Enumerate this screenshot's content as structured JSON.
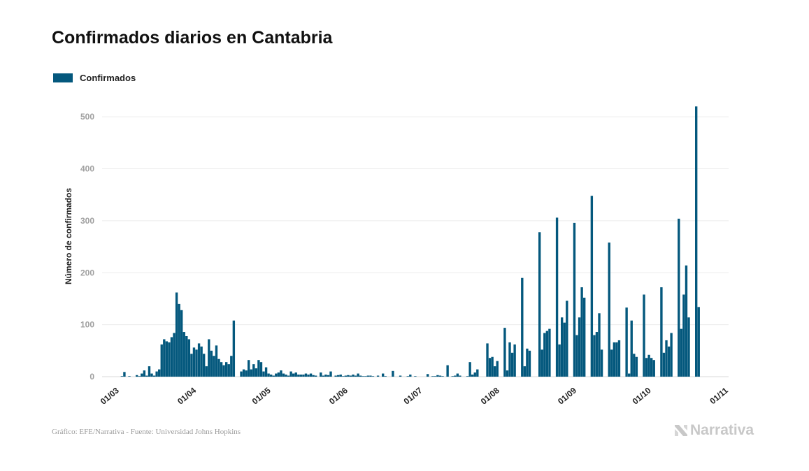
{
  "chart_data": {
    "type": "bar",
    "title": "Confirmados diarios en Cantabria",
    "ylabel": "Número de confirmados",
    "xlabel": "",
    "ylim": [
      0,
      550
    ],
    "yticks": [
      0,
      100,
      200,
      300,
      400,
      500
    ],
    "x_start": "2020-02-23",
    "x_end": "2020-11-01",
    "x_ticks": [
      {
        "date": "2020-03-01",
        "label": "01/03"
      },
      {
        "date": "2020-04-01",
        "label": "01/04"
      },
      {
        "date": "2020-05-01",
        "label": "01/05"
      },
      {
        "date": "2020-06-01",
        "label": "01/06"
      },
      {
        "date": "2020-07-01",
        "label": "01/07"
      },
      {
        "date": "2020-08-01",
        "label": "01/08"
      },
      {
        "date": "2020-09-01",
        "label": "01/09"
      },
      {
        "date": "2020-10-01",
        "label": "01/10"
      },
      {
        "date": "2020-11-01",
        "label": "01/11"
      }
    ],
    "grid": true,
    "legend_position": "top-left",
    "series": [
      {
        "name": "Confirmados",
        "color": "#04587d",
        "points": [
          [
            "2020-03-02",
            1
          ],
          [
            "2020-03-03",
            9
          ],
          [
            "2020-03-05",
            1
          ],
          [
            "2020-03-08",
            3
          ],
          [
            "2020-03-09",
            1
          ],
          [
            "2020-03-10",
            6
          ],
          [
            "2020-03-11",
            12
          ],
          [
            "2020-03-12",
            2
          ],
          [
            "2020-03-13",
            20
          ],
          [
            "2020-03-14",
            6
          ],
          [
            "2020-03-15",
            2
          ],
          [
            "2020-03-16",
            10
          ],
          [
            "2020-03-17",
            14
          ],
          [
            "2020-03-18",
            62
          ],
          [
            "2020-03-19",
            72
          ],
          [
            "2020-03-20",
            68
          ],
          [
            "2020-03-21",
            66
          ],
          [
            "2020-03-22",
            76
          ],
          [
            "2020-03-23",
            84
          ],
          [
            "2020-03-24",
            162
          ],
          [
            "2020-03-25",
            140
          ],
          [
            "2020-03-26",
            128
          ],
          [
            "2020-03-27",
            86
          ],
          [
            "2020-03-28",
            78
          ],
          [
            "2020-03-29",
            72
          ],
          [
            "2020-03-30",
            44
          ],
          [
            "2020-03-31",
            56
          ],
          [
            "2020-04-01",
            52
          ],
          [
            "2020-04-02",
            64
          ],
          [
            "2020-04-03",
            58
          ],
          [
            "2020-04-04",
            44
          ],
          [
            "2020-04-05",
            20
          ],
          [
            "2020-04-06",
            72
          ],
          [
            "2020-04-07",
            50
          ],
          [
            "2020-04-08",
            40
          ],
          [
            "2020-04-09",
            60
          ],
          [
            "2020-04-10",
            34
          ],
          [
            "2020-04-11",
            28
          ],
          [
            "2020-04-12",
            22
          ],
          [
            "2020-04-13",
            28
          ],
          [
            "2020-04-14",
            24
          ],
          [
            "2020-04-15",
            40
          ],
          [
            "2020-04-16",
            108
          ],
          [
            "2020-04-19",
            10
          ],
          [
            "2020-04-20",
            14
          ],
          [
            "2020-04-21",
            12
          ],
          [
            "2020-04-22",
            32
          ],
          [
            "2020-04-23",
            14
          ],
          [
            "2020-04-24",
            24
          ],
          [
            "2020-04-25",
            16
          ],
          [
            "2020-04-26",
            32
          ],
          [
            "2020-04-27",
            28
          ],
          [
            "2020-04-28",
            10
          ],
          [
            "2020-04-29",
            18
          ],
          [
            "2020-04-30",
            6
          ],
          [
            "2020-05-01",
            4
          ],
          [
            "2020-05-02",
            2
          ],
          [
            "2020-05-03",
            6
          ],
          [
            "2020-05-04",
            8
          ],
          [
            "2020-05-05",
            12
          ],
          [
            "2020-05-06",
            6
          ],
          [
            "2020-05-07",
            4
          ],
          [
            "2020-05-08",
            2
          ],
          [
            "2020-05-09",
            10
          ],
          [
            "2020-05-10",
            6
          ],
          [
            "2020-05-11",
            8
          ],
          [
            "2020-05-12",
            4
          ],
          [
            "2020-05-13",
            4
          ],
          [
            "2020-05-14",
            4
          ],
          [
            "2020-05-15",
            6
          ],
          [
            "2020-05-16",
            4
          ],
          [
            "2020-05-17",
            6
          ],
          [
            "2020-05-18",
            3
          ],
          [
            "2020-05-19",
            2
          ],
          [
            "2020-05-21",
            8
          ],
          [
            "2020-05-22",
            2
          ],
          [
            "2020-05-23",
            4
          ],
          [
            "2020-05-24",
            3
          ],
          [
            "2020-05-25",
            10
          ],
          [
            "2020-05-27",
            2
          ],
          [
            "2020-05-28",
            3
          ],
          [
            "2020-05-29",
            4
          ],
          [
            "2020-05-30",
            1
          ],
          [
            "2020-05-31",
            2
          ],
          [
            "2020-06-01",
            3
          ],
          [
            "2020-06-02",
            2
          ],
          [
            "2020-06-03",
            4
          ],
          [
            "2020-06-04",
            2
          ],
          [
            "2020-06-05",
            6
          ],
          [
            "2020-06-06",
            2
          ],
          [
            "2020-06-07",
            1
          ],
          [
            "2020-06-08",
            1
          ],
          [
            "2020-06-09",
            2
          ],
          [
            "2020-06-10",
            2
          ],
          [
            "2020-06-11",
            1
          ],
          [
            "2020-06-13",
            2
          ],
          [
            "2020-06-15",
            6
          ],
          [
            "2020-06-16",
            1
          ],
          [
            "2020-06-19",
            11
          ],
          [
            "2020-06-22",
            2
          ],
          [
            "2020-06-25",
            1
          ],
          [
            "2020-06-26",
            4
          ],
          [
            "2020-06-28",
            1
          ],
          [
            "2020-07-03",
            5
          ],
          [
            "2020-07-05",
            1
          ],
          [
            "2020-07-06",
            1
          ],
          [
            "2020-07-07",
            3
          ],
          [
            "2020-07-08",
            2
          ],
          [
            "2020-07-09",
            1
          ],
          [
            "2020-07-11",
            22
          ],
          [
            "2020-07-13",
            1
          ],
          [
            "2020-07-14",
            2
          ],
          [
            "2020-07-15",
            6
          ],
          [
            "2020-07-16",
            2
          ],
          [
            "2020-07-19",
            1
          ],
          [
            "2020-07-20",
            28
          ],
          [
            "2020-07-21",
            4
          ],
          [
            "2020-07-22",
            8
          ],
          [
            "2020-07-23",
            14
          ],
          [
            "2020-07-27",
            64
          ],
          [
            "2020-07-28",
            36
          ],
          [
            "2020-07-29",
            38
          ],
          [
            "2020-07-30",
            20
          ],
          [
            "2020-07-31",
            30
          ],
          [
            "2020-08-03",
            94
          ],
          [
            "2020-08-04",
            12
          ],
          [
            "2020-08-05",
            66
          ],
          [
            "2020-08-06",
            46
          ],
          [
            "2020-08-07",
            62
          ],
          [
            "2020-08-10",
            190
          ],
          [
            "2020-08-11",
            20
          ],
          [
            "2020-08-12",
            54
          ],
          [
            "2020-08-13",
            50
          ],
          [
            "2020-08-17",
            278
          ],
          [
            "2020-08-18",
            52
          ],
          [
            "2020-08-19",
            84
          ],
          [
            "2020-08-20",
            88
          ],
          [
            "2020-08-21",
            92
          ],
          [
            "2020-08-24",
            306
          ],
          [
            "2020-08-25",
            62
          ],
          [
            "2020-08-26",
            114
          ],
          [
            "2020-08-27",
            104
          ],
          [
            "2020-08-28",
            146
          ],
          [
            "2020-08-31",
            296
          ],
          [
            "2020-09-01",
            80
          ],
          [
            "2020-09-02",
            114
          ],
          [
            "2020-09-03",
            172
          ],
          [
            "2020-09-04",
            152
          ],
          [
            "2020-09-07",
            348
          ],
          [
            "2020-09-08",
            80
          ],
          [
            "2020-09-09",
            86
          ],
          [
            "2020-09-10",
            122
          ],
          [
            "2020-09-11",
            52
          ],
          [
            "2020-09-14",
            258
          ],
          [
            "2020-09-15",
            52
          ],
          [
            "2020-09-16",
            66
          ],
          [
            "2020-09-17",
            66
          ],
          [
            "2020-09-18",
            70
          ],
          [
            "2020-09-21",
            133
          ],
          [
            "2020-09-22",
            6
          ],
          [
            "2020-09-23",
            108
          ],
          [
            "2020-09-24",
            44
          ],
          [
            "2020-09-25",
            38
          ],
          [
            "2020-09-28",
            158
          ],
          [
            "2020-09-29",
            36
          ],
          [
            "2020-09-30",
            42
          ],
          [
            "2020-10-01",
            36
          ],
          [
            "2020-10-02",
            32
          ],
          [
            "2020-10-05",
            172
          ],
          [
            "2020-10-06",
            46
          ],
          [
            "2020-10-07",
            70
          ],
          [
            "2020-10-08",
            58
          ],
          [
            "2020-10-09",
            84
          ],
          [
            "2020-10-12",
            304
          ],
          [
            "2020-10-13",
            92
          ],
          [
            "2020-10-14",
            158
          ],
          [
            "2020-10-15",
            214
          ],
          [
            "2020-10-16",
            114
          ],
          [
            "2020-10-19",
            520
          ],
          [
            "2020-10-20",
            134
          ]
        ]
      }
    ]
  },
  "footer": {
    "credit": "Gráfico: EFE/Narrativa - Fuente: Universidad Johns Hopkins",
    "brand": "Narrativa",
    "brand_icon": "narrativa-logo-icon"
  }
}
